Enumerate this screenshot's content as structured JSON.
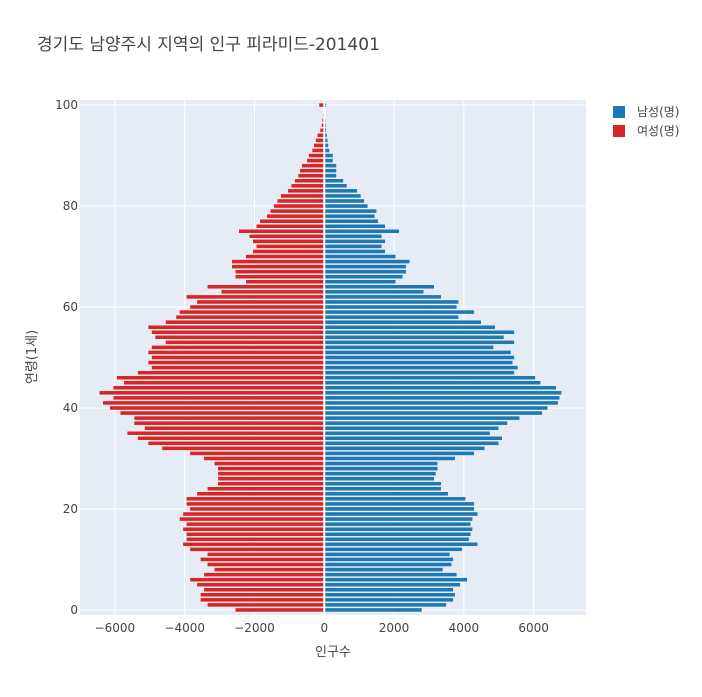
{
  "chart_data": {
    "type": "bar",
    "orientation": "horizontal",
    "barmode": "overlay",
    "title": "경기도 남양주시 지역의 인구 피라미드-201401",
    "xlabel": "인구수",
    "ylabel": "연령(1세)",
    "xlim": [
      -7000,
      7500
    ],
    "ylim": [
      -1,
      101
    ],
    "xticks": [
      -6000,
      -4000,
      -2000,
      0,
      2000,
      4000,
      6000
    ],
    "xtick_labels": [
      "−6000",
      "−4000",
      "−2000",
      "0",
      "2000",
      "4000",
      "6000"
    ],
    "yticks": [
      0,
      20,
      40,
      60,
      80,
      100
    ],
    "grid": true,
    "legend_position": "top-right",
    "categories": [
      0,
      1,
      2,
      3,
      4,
      5,
      6,
      7,
      8,
      9,
      10,
      11,
      12,
      13,
      14,
      15,
      16,
      17,
      18,
      19,
      20,
      21,
      22,
      23,
      24,
      25,
      26,
      27,
      28,
      29,
      30,
      31,
      32,
      33,
      34,
      35,
      36,
      37,
      38,
      39,
      40,
      41,
      42,
      43,
      44,
      45,
      46,
      47,
      48,
      49,
      50,
      51,
      52,
      53,
      54,
      55,
      56,
      57,
      58,
      59,
      60,
      61,
      62,
      63,
      64,
      65,
      66,
      67,
      68,
      69,
      70,
      71,
      72,
      73,
      74,
      75,
      76,
      77,
      78,
      79,
      80,
      81,
      82,
      83,
      84,
      85,
      86,
      87,
      88,
      89,
      90,
      91,
      92,
      93,
      94,
      95,
      96,
      97,
      98,
      99,
      100
    ],
    "series": [
      {
        "name": "남성(명)",
        "color": "#1f77b4",
        "values": [
          2800,
          3500,
          3700,
          3750,
          3700,
          3900,
          4100,
          3800,
          3400,
          3650,
          3700,
          3600,
          3950,
          4400,
          4150,
          4200,
          4250,
          4200,
          4250,
          4400,
          4300,
          4300,
          4050,
          3550,
          3350,
          3350,
          3150,
          3200,
          3250,
          3250,
          3750,
          4300,
          4600,
          5000,
          5100,
          4750,
          5000,
          5250,
          5600,
          6250,
          6400,
          6700,
          6750,
          6800,
          6650,
          6200,
          6050,
          5450,
          5550,
          5400,
          5450,
          5350,
          4850,
          5450,
          5150,
          5450,
          4900,
          4500,
          3850,
          4300,
          3800,
          3850,
          3350,
          2850,
          3150,
          2050,
          2250,
          2350,
          2350,
          2450,
          2050,
          1750,
          1650,
          1750,
          1650,
          2150,
          1750,
          1550,
          1450,
          1500,
          1250,
          1150,
          1050,
          950,
          650,
          550,
          350,
          350,
          350,
          250,
          250,
          150,
          120,
          100,
          80,
          60,
          50,
          40,
          30,
          20,
          60
        ]
      },
      {
        "name": "여성(명)",
        "color": "#d62728",
        "values": [
          -2550,
          -3350,
          -3550,
          -3550,
          -3450,
          -3650,
          -3850,
          -3450,
          -3150,
          -3350,
          -3550,
          -3350,
          -3850,
          -4050,
          -3950,
          -3950,
          -4050,
          -3950,
          -4150,
          -4050,
          -3850,
          -3950,
          -3950,
          -3650,
          -3350,
          -3050,
          -3050,
          -3050,
          -3050,
          -3150,
          -3450,
          -3850,
          -4650,
          -5050,
          -5350,
          -5650,
          -5150,
          -5450,
          -5450,
          -5850,
          -6150,
          -6350,
          -6050,
          -6450,
          -6050,
          -5750,
          -5950,
          -5350,
          -4950,
          -5050,
          -4950,
          -5050,
          -4950,
          -4550,
          -4850,
          -4950,
          -5050,
          -4550,
          -4250,
          -4150,
          -3850,
          -3650,
          -3950,
          -2950,
          -3350,
          -2250,
          -2550,
          -2550,
          -2650,
          -2650,
          -2250,
          -2050,
          -1950,
          -2050,
          -2150,
          -2450,
          -1950,
          -1850,
          -1650,
          -1550,
          -1450,
          -1350,
          -1250,
          -1050,
          -950,
          -850,
          -750,
          -700,
          -650,
          -500,
          -450,
          -350,
          -300,
          -250,
          -200,
          -120,
          -80,
          -60,
          -40,
          -30,
          -150
        ]
      }
    ]
  }
}
